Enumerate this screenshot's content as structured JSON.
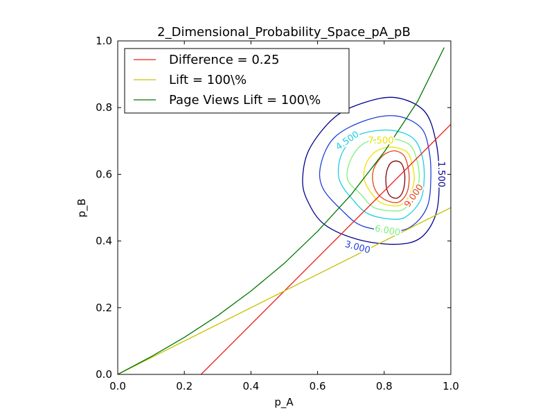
{
  "chart_data": {
    "type": "line",
    "title": "2_Dimensional_Probability_Space_pA_pB",
    "xlabel": "p_A",
    "ylabel": "p_B",
    "xlim": [
      0.0,
      1.0
    ],
    "ylim": [
      0.0,
      1.0
    ],
    "xticks": [
      "0.0",
      "0.2",
      "0.4",
      "0.6",
      "0.8",
      "1.0"
    ],
    "yticks": [
      "0.0",
      "0.2",
      "0.4",
      "0.6",
      "0.8",
      "1.0"
    ],
    "legend_position": "top-left",
    "grid": false,
    "series": [
      {
        "name": "Difference = 0.25",
        "color": "#ee1c1c",
        "points": [
          [
            0.25,
            0.0
          ],
          [
            1.0,
            0.75
          ]
        ]
      },
      {
        "name": "Lift = 100\\%",
        "color": "#c8c000",
        "points": [
          [
            0.0,
            0.0
          ],
          [
            1.0,
            0.5
          ]
        ]
      },
      {
        "name": "Page Views Lift  = 100\\%",
        "color": "#007700",
        "points": [
          [
            0.0,
            0.0
          ],
          [
            0.1,
            0.053
          ],
          [
            0.2,
            0.111
          ],
          [
            0.3,
            0.176
          ],
          [
            0.4,
            0.25
          ],
          [
            0.5,
            0.333
          ],
          [
            0.6,
            0.429
          ],
          [
            0.7,
            0.538
          ],
          [
            0.8,
            0.667
          ],
          [
            0.9,
            0.818
          ],
          [
            0.98,
            0.98
          ]
        ]
      }
    ],
    "contours": {
      "center": [
        0.835,
        0.585
      ],
      "levels": [
        {
          "value": 1.5,
          "label": "1.500",
          "color": "#00008b",
          "points": [
            [
              0.835,
              0.83
            ],
            [
              0.92,
              0.79
            ],
            [
              0.955,
              0.7
            ],
            [
              0.965,
              0.585
            ],
            [
              0.955,
              0.48
            ],
            [
              0.91,
              0.41
            ],
            [
              0.835,
              0.39
            ],
            [
              0.72,
              0.405
            ],
            [
              0.62,
              0.45
            ],
            [
              0.57,
              0.52
            ],
            [
              0.555,
              0.585
            ],
            [
              0.575,
              0.675
            ],
            [
              0.65,
              0.77
            ],
            [
              0.74,
              0.815
            ]
          ]
        },
        {
          "value": 3.0,
          "label": "3.000",
          "color": "#1c3fd8",
          "points": [
            [
              0.835,
              0.775
            ],
            [
              0.91,
              0.74
            ],
            [
              0.935,
              0.67
            ],
            [
              0.94,
              0.585
            ],
            [
              0.93,
              0.505
            ],
            [
              0.89,
              0.45
            ],
            [
              0.835,
              0.43
            ],
            [
              0.735,
              0.445
            ],
            [
              0.675,
              0.49
            ],
            [
              0.615,
              0.56
            ],
            [
              0.61,
              0.63
            ],
            [
              0.65,
              0.71
            ],
            [
              0.74,
              0.76
            ]
          ]
        },
        {
          "value": 4.5,
          "label": "4.500",
          "color": "#19d0e0",
          "points": [
            [
              0.835,
              0.73
            ],
            [
              0.89,
              0.705
            ],
            [
              0.915,
              0.65
            ],
            [
              0.92,
              0.585
            ],
            [
              0.91,
              0.525
            ],
            [
              0.875,
              0.48
            ],
            [
              0.835,
              0.465
            ],
            [
              0.755,
              0.48
            ],
            [
              0.705,
              0.525
            ],
            [
              0.665,
              0.585
            ],
            [
              0.67,
              0.655
            ],
            [
              0.71,
              0.71
            ],
            [
              0.77,
              0.73
            ]
          ]
        },
        {
          "value": 6.0,
          "label": "6.000",
          "color": "#7ef07e",
          "points": [
            [
              0.835,
              0.705
            ],
            [
              0.88,
              0.685
            ],
            [
              0.9,
              0.635
            ],
            [
              0.905,
              0.585
            ],
            [
              0.895,
              0.535
            ],
            [
              0.865,
              0.5
            ],
            [
              0.835,
              0.49
            ],
            [
              0.77,
              0.5
            ],
            [
              0.73,
              0.54
            ],
            [
              0.69,
              0.585
            ],
            [
              0.7,
              0.645
            ],
            [
              0.735,
              0.69
            ],
            [
              0.785,
              0.705
            ]
          ]
        },
        {
          "value": 7.5,
          "label": "7.500",
          "color": "#f0e000",
          "points": [
            [
              0.835,
              0.68
            ],
            [
              0.87,
              0.665
            ],
            [
              0.885,
              0.625
            ],
            [
              0.89,
              0.585
            ],
            [
              0.88,
              0.545
            ],
            [
              0.86,
              0.515
            ],
            [
              0.835,
              0.505
            ],
            [
              0.79,
              0.515
            ],
            [
              0.76,
              0.545
            ],
            [
              0.74,
              0.585
            ],
            [
              0.745,
              0.63
            ],
            [
              0.77,
              0.665
            ],
            [
              0.805,
              0.68
            ]
          ]
        },
        {
          "value": 9.0,
          "label": "9.000",
          "color": "#e0441c",
          "points": [
            [
              0.835,
              0.67
            ],
            [
              0.86,
              0.655
            ],
            [
              0.872,
              0.62
            ],
            [
              0.875,
              0.585
            ],
            [
              0.87,
              0.55
            ],
            [
              0.855,
              0.525
            ],
            [
              0.835,
              0.515
            ],
            [
              0.8,
              0.525
            ],
            [
              0.775,
              0.55
            ],
            [
              0.765,
              0.585
            ],
            [
              0.77,
              0.62
            ],
            [
              0.79,
              0.65
            ],
            [
              0.81,
              0.665
            ]
          ]
        },
        {
          "value": 10.5,
          "label": "",
          "color": "#800000",
          "points": [
            [
              0.835,
              0.64
            ],
            [
              0.852,
              0.632
            ],
            [
              0.86,
              0.61
            ],
            [
              0.862,
              0.585
            ],
            [
              0.858,
              0.555
            ],
            [
              0.848,
              0.535
            ],
            [
              0.835,
              0.528
            ],
            [
              0.818,
              0.535
            ],
            [
              0.808,
              0.555
            ],
            [
              0.805,
              0.585
            ],
            [
              0.808,
              0.61
            ],
            [
              0.818,
              0.632
            ]
          ]
        }
      ],
      "labels": [
        {
          "text": "1.500",
          "color": "#00008b",
          "at": [
            0.97,
            0.6
          ],
          "rotate": 90
        },
        {
          "text": "3.000",
          "color": "#1c3fd8",
          "at": [
            0.72,
            0.38
          ],
          "rotate": 15
        },
        {
          "text": "4.500",
          "color": "#19d0e0",
          "at": [
            0.69,
            0.7
          ],
          "rotate": -35
        },
        {
          "text": "6.000",
          "color": "#7ef07e",
          "at": [
            0.81,
            0.43
          ],
          "rotate": 10
        },
        {
          "text": "7.500",
          "color": "#f0e000",
          "at": [
            0.79,
            0.7
          ],
          "rotate": 0
        },
        {
          "text": "9.000",
          "color": "#e0441c",
          "at": [
            0.89,
            0.535
          ],
          "rotate": -55
        }
      ]
    }
  }
}
